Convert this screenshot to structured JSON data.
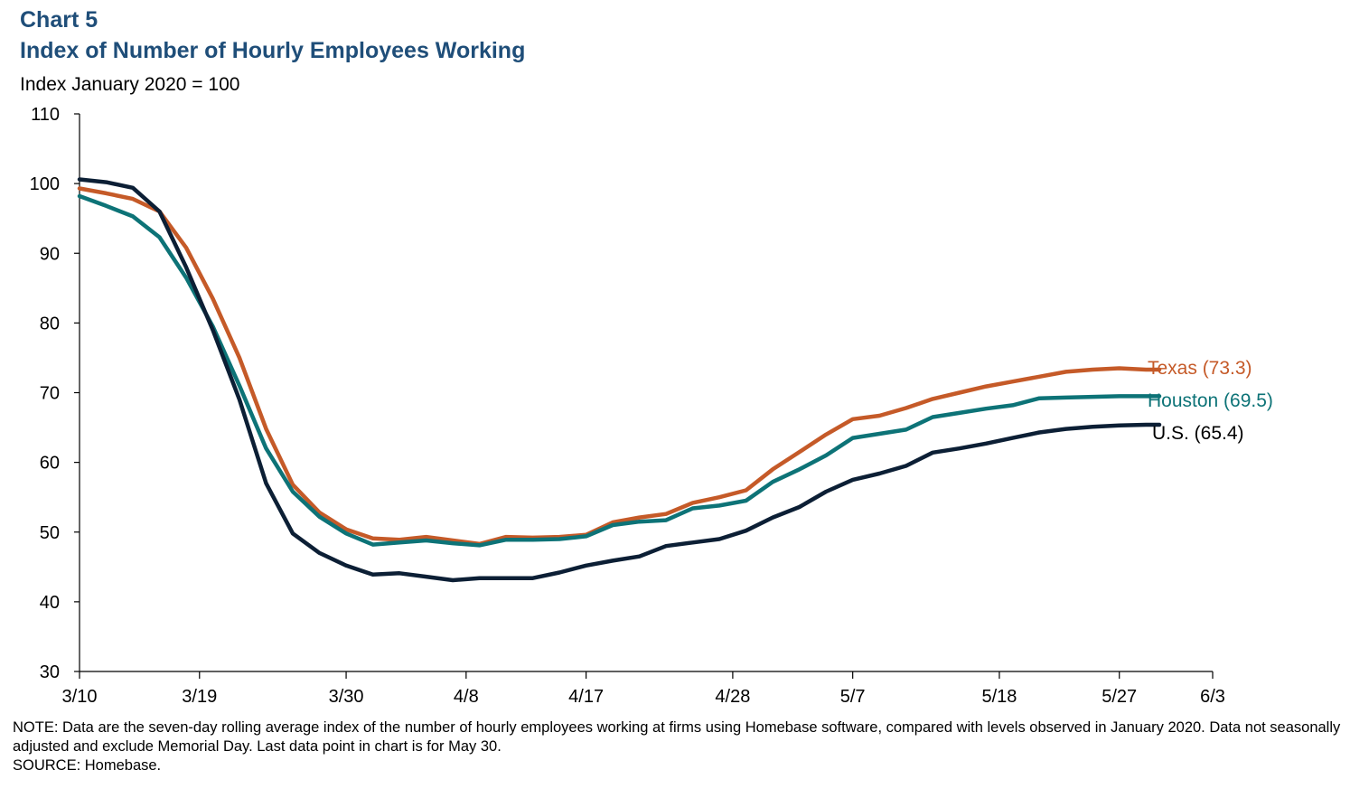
{
  "header": {
    "chart_number": "Chart 5",
    "title": "Index of Number of Hourly Employees Working",
    "subtitle": "Index January 2020 = 100"
  },
  "notes": {
    "note": "NOTE: Data are the seven-day rolling average index of the number of hourly employees working at firms using Homebase software, compared with levels observed in January 2020. Data not seasonally adjusted and exclude Memorial Day. Last data point in chart is for May 30.",
    "source": "SOURCE: Homebase."
  },
  "chart_data": {
    "type": "line",
    "title": "Index of Number of Hourly Employees Working",
    "ylabel": "Index January 2020 = 100",
    "ylim": [
      30,
      110
    ],
    "yticks": [
      30,
      40,
      50,
      60,
      70,
      80,
      90,
      100,
      110
    ],
    "xlim": [
      "3/10",
      "6/3"
    ],
    "xtick_labels": [
      "3/10",
      "3/19",
      "3/30",
      "4/8",
      "4/17",
      "4/28",
      "5/7",
      "5/18",
      "5/27",
      "6/3"
    ],
    "grid": false,
    "legend": "inline labels at line ends (right)",
    "series": [
      {
        "name": "Texas (73.3)",
        "color": "#c55a28",
        "x": [
          "3/10",
          "3/12",
          "3/14",
          "3/16",
          "3/18",
          "3/20",
          "3/22",
          "3/24",
          "3/26",
          "3/28",
          "3/30",
          "4/1",
          "4/3",
          "4/5",
          "4/7",
          "4/9",
          "4/11",
          "4/13",
          "4/15",
          "4/17",
          "4/19",
          "4/21",
          "4/23",
          "4/25",
          "4/27",
          "4/29",
          "5/1",
          "5/3",
          "5/5",
          "5/7",
          "5/9",
          "5/11",
          "5/13",
          "5/15",
          "5/17",
          "5/19",
          "5/21",
          "5/23",
          "5/25",
          "5/27",
          "5/29",
          "5/30"
        ],
        "values": [
          99.3,
          98.6,
          97.8,
          96.0,
          90.8,
          83.5,
          75.0,
          64.8,
          56.8,
          52.8,
          50.4,
          49.1,
          48.9,
          49.3,
          48.8,
          48.3,
          49.3,
          49.2,
          49.3,
          49.6,
          51.4,
          52.1,
          52.6,
          54.2,
          55.0,
          56.0,
          59.0,
          61.5,
          64.0,
          66.2,
          66.7,
          67.8,
          69.1,
          70.0,
          70.9,
          71.6,
          72.3,
          73.0,
          73.3,
          73.5,
          73.3,
          73.3
        ],
        "end_label_value": 73.3
      },
      {
        "name": "Houston (69.5)",
        "color": "#0d7377",
        "x": [
          "3/10",
          "3/12",
          "3/14",
          "3/16",
          "3/18",
          "3/20",
          "3/22",
          "3/24",
          "3/26",
          "3/28",
          "3/30",
          "4/1",
          "4/3",
          "4/5",
          "4/7",
          "4/9",
          "4/11",
          "4/13",
          "4/15",
          "4/17",
          "4/19",
          "4/21",
          "4/23",
          "4/25",
          "4/27",
          "4/29",
          "5/1",
          "5/3",
          "5/5",
          "5/7",
          "5/9",
          "5/11",
          "5/13",
          "5/15",
          "5/17",
          "5/19",
          "5/21",
          "5/23",
          "5/25",
          "5/27",
          "5/29",
          "5/30"
        ],
        "values": [
          98.2,
          96.8,
          95.3,
          92.3,
          86.5,
          79.5,
          71.0,
          62.0,
          55.8,
          52.2,
          49.8,
          48.2,
          48.5,
          48.8,
          48.4,
          48.1,
          48.9,
          48.9,
          49.0,
          49.4,
          51.0,
          51.5,
          51.7,
          53.4,
          53.8,
          54.5,
          57.2,
          59.0,
          61.0,
          63.5,
          64.1,
          64.7,
          66.5,
          67.1,
          67.7,
          68.2,
          69.2,
          69.3,
          69.4,
          69.5,
          69.5,
          69.5
        ],
        "end_label_value": 69.5
      },
      {
        "name": "U.S. (65.4)",
        "color": "#0c1f35",
        "x": [
          "3/10",
          "3/12",
          "3/14",
          "3/16",
          "3/18",
          "3/20",
          "3/22",
          "3/24",
          "3/26",
          "3/28",
          "3/30",
          "4/1",
          "4/3",
          "4/5",
          "4/7",
          "4/9",
          "4/11",
          "4/13",
          "4/15",
          "4/17",
          "4/19",
          "4/21",
          "4/23",
          "4/25",
          "4/27",
          "4/29",
          "5/1",
          "5/3",
          "5/5",
          "5/7",
          "5/9",
          "5/11",
          "5/13",
          "5/15",
          "5/17",
          "5/19",
          "5/21",
          "5/23",
          "5/25",
          "5/27",
          "5/29",
          "5/30"
        ],
        "values": [
          100.6,
          100.2,
          99.4,
          96.0,
          88.0,
          79.0,
          69.0,
          57.0,
          49.8,
          47.0,
          45.2,
          43.9,
          44.1,
          43.6,
          43.1,
          43.4,
          43.4,
          43.4,
          44.2,
          45.2,
          45.9,
          46.5,
          48.0,
          48.5,
          49.0,
          50.2,
          52.1,
          53.6,
          55.8,
          57.5,
          58.4,
          59.5,
          61.4,
          62.0,
          62.7,
          63.5,
          64.3,
          64.8,
          65.1,
          65.3,
          65.4,
          65.4
        ],
        "end_label_value": 65.4
      }
    ]
  }
}
